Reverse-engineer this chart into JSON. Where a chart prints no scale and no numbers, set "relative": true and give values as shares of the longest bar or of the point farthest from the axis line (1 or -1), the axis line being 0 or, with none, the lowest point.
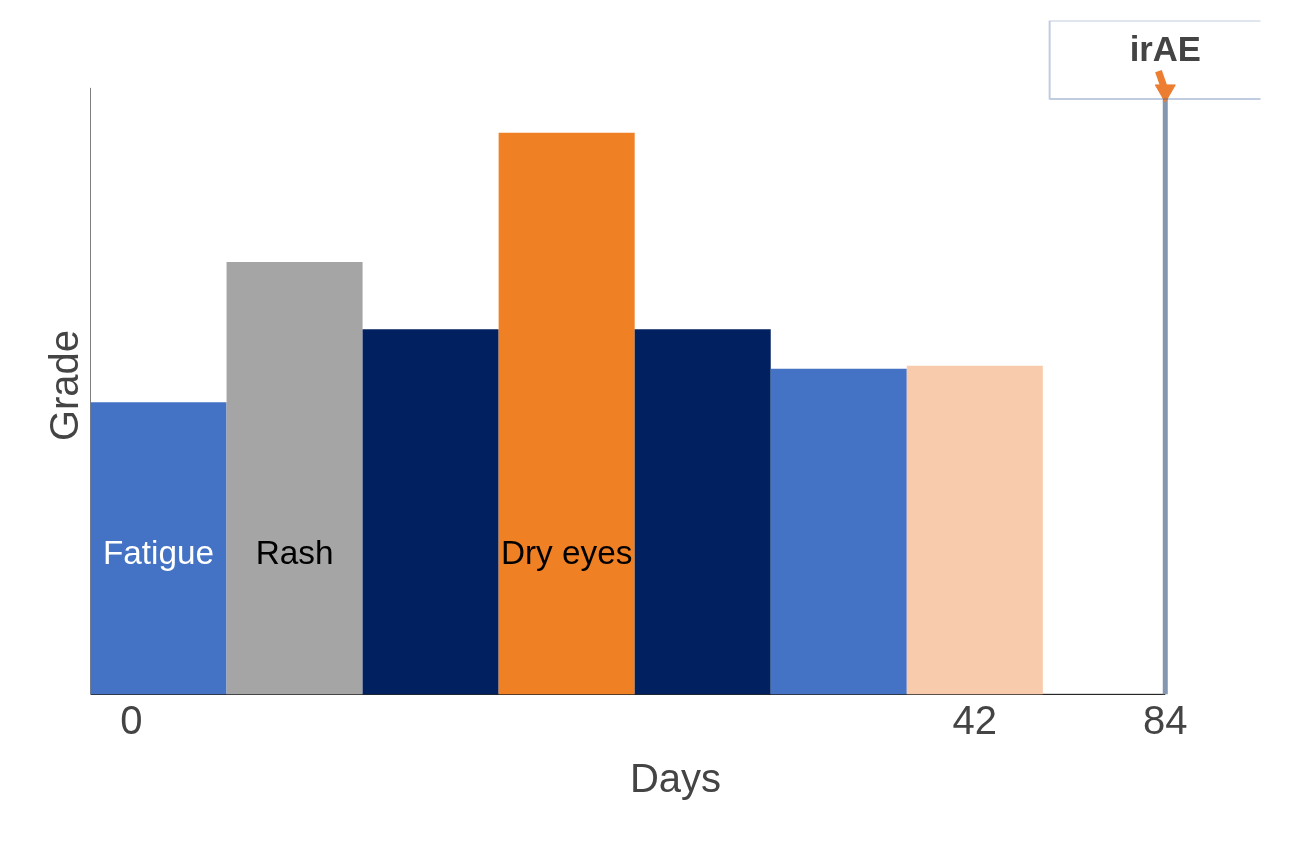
{
  "chart_data": {
    "type": "bar",
    "relative": true,
    "xlabel": "Days",
    "ylabel": "Grade",
    "categories": [
      "Fatigue",
      "Rash",
      null,
      "Dry eyes",
      null,
      null,
      null
    ],
    "values": [
      0.52,
      0.77,
      0.65,
      1,
      0.65,
      0.58,
      0.585
    ],
    "colors": [
      "#4472c4",
      "#a5a5a5",
      "#002060",
      "#f08024",
      "#002060",
      "#4472c4",
      "#f8cbad"
    ],
    "annotations": [
      "0",
      "42",
      "84",
      "irAE"
    ]
  }
}
